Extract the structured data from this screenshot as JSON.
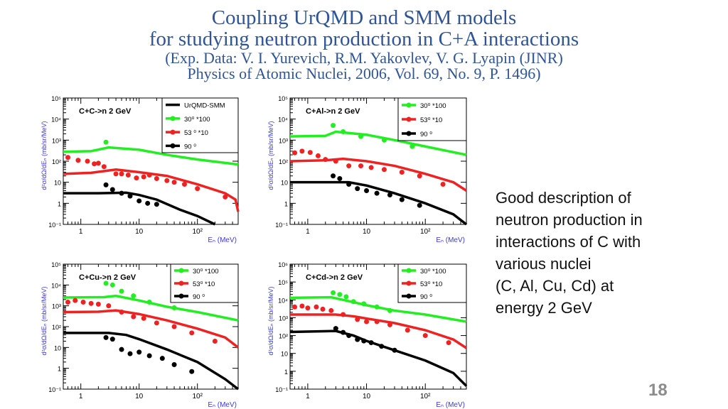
{
  "title": {
    "line1": "Coupling UrQMD and SMM models",
    "line2": "for studying neutron production in C+A interactions",
    "line3": "(Exp. Data: V. I. Yurevich,  R.M. Yakovlev, V. G. Lyapin  (JINR)",
    "line4": "Physics of Atomic Nuclei, 2006,  Vol. 69, No. 9,  P. 1496)"
  },
  "description": [
    "Good description of",
    "neutron production in",
    "interactions of C with",
    "various nuclei",
    "(C, Al, Cu, Cd) at",
    "energy 2 GeV"
  ],
  "page_number": "18",
  "colors": {
    "title": "#2f5597",
    "axis_label": "#3a3adb",
    "green": "#22ee22",
    "red": "#ee2222",
    "black": "#000000"
  },
  "chart_data": [
    {
      "type": "line+scatter",
      "title": "C+C->n  2 GeV",
      "xlabel": "Eₙ (MeV)",
      "ylabel": "d²σ/dΩ/dEₙ (mb/sr/MeV)",
      "xscale": "log",
      "yscale": "log",
      "xlim": [
        0.5,
        500
      ],
      "ylim": [
        0.1,
        100000
      ],
      "xticks": [
        "1",
        "10",
        "10²"
      ],
      "yticks": [
        "10⁻¹",
        "1",
        "10",
        "10²",
        "10³",
        "10⁴",
        "10⁵"
      ],
      "legend": [
        {
          "label": "UrQMD-SMM",
          "kind": "line",
          "color": "#000000"
        },
        {
          "label": "30⁰ *100",
          "kind": "marker",
          "color": "#22ee22"
        },
        {
          "label": "53 ⁰ *10",
          "kind": "marker",
          "color": "#ee2222"
        },
        {
          "label": "90 ⁰",
          "kind": "marker",
          "color": "#000000"
        }
      ],
      "series": [
        {
          "color": "#22ee22",
          "model": [
            [
              0.5,
              280
            ],
            [
              1.5,
              300
            ],
            [
              3,
              450
            ],
            [
              10,
              350
            ],
            [
              30,
              200
            ],
            [
              100,
              120
            ],
            [
              500,
              70
            ]
          ],
          "points": [
            [
              2.7,
              800
            ]
          ]
        },
        {
          "color": "#ee2222",
          "model": [
            [
              0.5,
              25
            ],
            [
              1.5,
              28
            ],
            [
              4,
              40
            ],
            [
              10,
              30
            ],
            [
              30,
              20
            ],
            [
              100,
              8
            ],
            [
              300,
              3
            ],
            [
              450,
              1.5
            ],
            [
              500,
              0.4
            ]
          ],
          "points": [
            [
              0.6,
              150
            ],
            [
              0.9,
              110
            ],
            [
              1.3,
              100
            ],
            [
              1.7,
              75
            ],
            [
              2,
              80
            ],
            [
              2.5,
              55
            ],
            [
              4,
              25
            ],
            [
              5,
              25
            ],
            [
              6.5,
              22
            ],
            [
              9,
              16
            ],
            [
              12,
              18
            ],
            [
              15,
              22
            ],
            [
              20,
              15
            ],
            [
              30,
              12
            ],
            [
              40,
              10
            ],
            [
              60,
              8
            ],
            [
              100,
              5
            ],
            [
              300,
              2
            ]
          ]
        },
        {
          "color": "#000000",
          "model": [
            [
              0.5,
              3
            ],
            [
              2,
              3
            ],
            [
              6,
              3.2
            ],
            [
              10,
              2.5
            ],
            [
              20,
              1.5
            ],
            [
              50,
              0.5
            ],
            [
              100,
              0.25
            ],
            [
              200,
              0.1
            ]
          ],
          "points": [
            [
              2.7,
              7.5
            ],
            [
              3.5,
              4.5
            ],
            [
              5,
              3
            ],
            [
              7,
              2.2
            ],
            [
              10,
              1.3
            ],
            [
              14,
              1.0
            ],
            [
              20,
              0.9
            ]
          ]
        }
      ]
    },
    {
      "type": "line+scatter",
      "title": "C+Al->n  2 GeV",
      "xlabel": "Eₙ (MeV)",
      "ylabel": "d²σ/dΩ/dEₙ (mb/sr/MeV)",
      "xscale": "log",
      "yscale": "log",
      "xlim": [
        0.5,
        500
      ],
      "ylim": [
        0.1,
        100000
      ],
      "xticks": [
        "1",
        "10",
        "10²"
      ],
      "yticks": [
        "10⁻¹",
        "1",
        "10",
        "10²",
        "10³",
        "10⁴",
        "10⁵"
      ],
      "legend": [
        {
          "label": "30⁰ *100",
          "kind": "marker",
          "color": "#22ee22"
        },
        {
          "label": "53⁰ *10",
          "kind": "marker",
          "color": "#ee2222"
        },
        {
          "label": "90 ⁰",
          "kind": "marker",
          "color": "#000000"
        }
      ],
      "series": [
        {
          "color": "#22ee22",
          "model": [
            [
              0.5,
              1500
            ],
            [
              2,
              1600
            ],
            [
              3,
              2500
            ],
            [
              10,
              1800
            ],
            [
              30,
              1000
            ],
            [
              100,
              500
            ],
            [
              500,
              200
            ]
          ],
          "points": [
            [
              2.7,
              5000
            ],
            [
              4,
              2500
            ],
            [
              8,
              1500
            ],
            [
              20,
              1000
            ],
            [
              60,
              500
            ]
          ]
        },
        {
          "color": "#ee2222",
          "model": [
            [
              0.5,
              100
            ],
            [
              2,
              110
            ],
            [
              4,
              130
            ],
            [
              10,
              100
            ],
            [
              30,
              60
            ],
            [
              100,
              25
            ],
            [
              300,
              10
            ],
            [
              500,
              4
            ]
          ],
          "points": [
            [
              0.6,
              250
            ],
            [
              0.8,
              300
            ],
            [
              1.1,
              260
            ],
            [
              1.5,
              180
            ],
            [
              2,
              120
            ],
            [
              3,
              100
            ],
            [
              5,
              60
            ],
            [
              8,
              60
            ],
            [
              12,
              50
            ],
            [
              20,
              40
            ],
            [
              40,
              30
            ],
            [
              80,
              20
            ],
            [
              200,
              8
            ]
          ]
        },
        {
          "color": "#000000",
          "model": [
            [
              0.5,
              10
            ],
            [
              2,
              10
            ],
            [
              5,
              10
            ],
            [
              10,
              7
            ],
            [
              30,
              3
            ],
            [
              100,
              1
            ],
            [
              300,
              0.3
            ],
            [
              500,
              0.1
            ]
          ],
          "points": [
            [
              2.7,
              20
            ],
            [
              3.5,
              15
            ],
            [
              5,
              8
            ],
            [
              7,
              5
            ],
            [
              10,
              4
            ],
            [
              15,
              3
            ],
            [
              25,
              2.5
            ],
            [
              40,
              1.5
            ],
            [
              80,
              0.8
            ]
          ]
        }
      ]
    },
    {
      "type": "line+scatter",
      "title": "C+Cu->n  2 GeV",
      "xlabel": "Eₙ (MeV)",
      "ylabel": "d²σ/dΩ/dEₙ (mb/sr/MeV)",
      "xscale": "log",
      "yscale": "log",
      "xlim": [
        0.5,
        500
      ],
      "ylim": [
        0.1,
        100000
      ],
      "xticks": [
        "1",
        "10",
        "10²"
      ],
      "yticks": [
        "10⁻¹",
        "1",
        "10",
        "10²",
        "10³",
        "10⁴",
        "10⁵"
      ],
      "legend": [
        {
          "label": "30⁰ *100",
          "kind": "marker",
          "color": "#22ee22"
        },
        {
          "label": "53⁰ *10",
          "kind": "marker",
          "color": "#ee2222"
        },
        {
          "label": "90 ⁰",
          "kind": "marker",
          "color": "#000000"
        }
      ],
      "series": [
        {
          "color": "#22ee22",
          "model": [
            [
              0.5,
              2500
            ],
            [
              2.5,
              2600
            ],
            [
              4,
              3000
            ],
            [
              10,
              1800
            ],
            [
              30,
              900
            ],
            [
              100,
              500
            ],
            [
              500,
              200
            ]
          ],
          "points": [
            [
              2.7,
              12000
            ],
            [
              3.5,
              10000
            ],
            [
              5,
              5000
            ],
            [
              8,
              3000
            ],
            [
              15,
              1500
            ],
            [
              40,
              800
            ]
          ]
        },
        {
          "color": "#ee2222",
          "model": [
            [
              0.5,
              500
            ],
            [
              2,
              520
            ],
            [
              4,
              600
            ],
            [
              10,
              400
            ],
            [
              30,
              200
            ],
            [
              100,
              80
            ],
            [
              300,
              30
            ],
            [
              500,
              10
            ]
          ],
          "points": [
            [
              0.6,
              1500
            ],
            [
              0.8,
              1800
            ],
            [
              1.1,
              1500
            ],
            [
              1.5,
              1300
            ],
            [
              2,
              1200
            ],
            [
              3,
              1000
            ],
            [
              5,
              500
            ],
            [
              8,
              300
            ],
            [
              12,
              250
            ],
            [
              20,
              150
            ],
            [
              40,
              100
            ],
            [
              80,
              50
            ],
            [
              200,
              20
            ]
          ]
        },
        {
          "color": "#000000",
          "model": [
            [
              0.5,
              50
            ],
            [
              3,
              50
            ],
            [
              6,
              40
            ],
            [
              10,
              25
            ],
            [
              30,
              8
            ],
            [
              100,
              2
            ],
            [
              300,
              0.3
            ],
            [
              500,
              0.1
            ]
          ],
          "points": [
            [
              2.7,
              30
            ],
            [
              3.5,
              25
            ],
            [
              5,
              8
            ],
            [
              7,
              5
            ],
            [
              10,
              6
            ],
            [
              15,
              4
            ],
            [
              25,
              3
            ],
            [
              40,
              1.5
            ],
            [
              80,
              0.7
            ]
          ]
        }
      ]
    },
    {
      "type": "line+scatter",
      "title": "C+Cd->n  2 GeV",
      "xlabel": "Eₙ (MeV)",
      "ylabel": "d²σ/dΩ/dEₙ (mb/sr/MeV)",
      "xscale": "log",
      "yscale": "log",
      "xlim": [
        0.5,
        500
      ],
      "ylim": [
        0.1,
        1000000
      ],
      "xticks": [
        "1",
        "10",
        "10²"
      ],
      "yticks": [
        "10⁻¹",
        "1",
        "10",
        "10²",
        "10³",
        "10⁴",
        "10⁵",
        "10⁶"
      ],
      "legend": [
        {
          "label": "30⁰ *100",
          "kind": "marker",
          "color": "#22ee22"
        },
        {
          "label": "53⁰ *10",
          "kind": "marker",
          "color": "#ee2222"
        },
        {
          "label": "90 ⁰",
          "kind": "marker",
          "color": "#000000"
        }
      ],
      "series": [
        {
          "color": "#22ee22",
          "model": [
            [
              0.5,
              13000
            ],
            [
              2.5,
              14000
            ],
            [
              4,
              10000
            ],
            [
              10,
              5000
            ],
            [
              30,
              2500
            ],
            [
              100,
              1500
            ],
            [
              500,
              600
            ]
          ],
          "points": [
            [
              2.7,
              25000
            ],
            [
              3.5,
              20000
            ],
            [
              4.5,
              15000
            ],
            [
              6,
              8000
            ],
            [
              9,
              6000
            ],
            [
              15,
              4000
            ],
            [
              25,
              2500
            ]
          ]
        },
        {
          "color": "#ee2222",
          "model": [
            [
              0.5,
              1500
            ],
            [
              3,
              1500
            ],
            [
              6,
              1200
            ],
            [
              10,
              900
            ],
            [
              30,
              500
            ],
            [
              100,
              200
            ],
            [
              300,
              60
            ],
            [
              500,
              20
            ]
          ],
          "points": [
            [
              0.6,
              4000
            ],
            [
              0.8,
              4500
            ],
            [
              1.0,
              3500
            ],
            [
              1.4,
              4000
            ],
            [
              1.8,
              3000
            ],
            [
              2.5,
              2500
            ],
            [
              4,
              1500
            ],
            [
              7,
              800
            ],
            [
              10,
              600
            ],
            [
              15,
              600
            ],
            [
              25,
              400
            ],
            [
              50,
              200
            ],
            [
              100,
              100
            ],
            [
              250,
              40
            ]
          ]
        },
        {
          "color": "#000000",
          "model": [
            [
              0.5,
              160
            ],
            [
              3,
              180
            ],
            [
              6,
              100
            ],
            [
              10,
              50
            ],
            [
              30,
              15
            ],
            [
              100,
              4
            ],
            [
              300,
              0.8
            ],
            [
              500,
              0.15
            ]
          ],
          "points": [
            [
              3,
              250
            ],
            [
              4,
              150
            ],
            [
              5,
              100
            ],
            [
              7,
              60
            ],
            [
              9,
              50
            ],
            [
              12,
              40
            ],
            [
              18,
              25
            ],
            [
              30,
              15
            ]
          ]
        }
      ]
    }
  ]
}
